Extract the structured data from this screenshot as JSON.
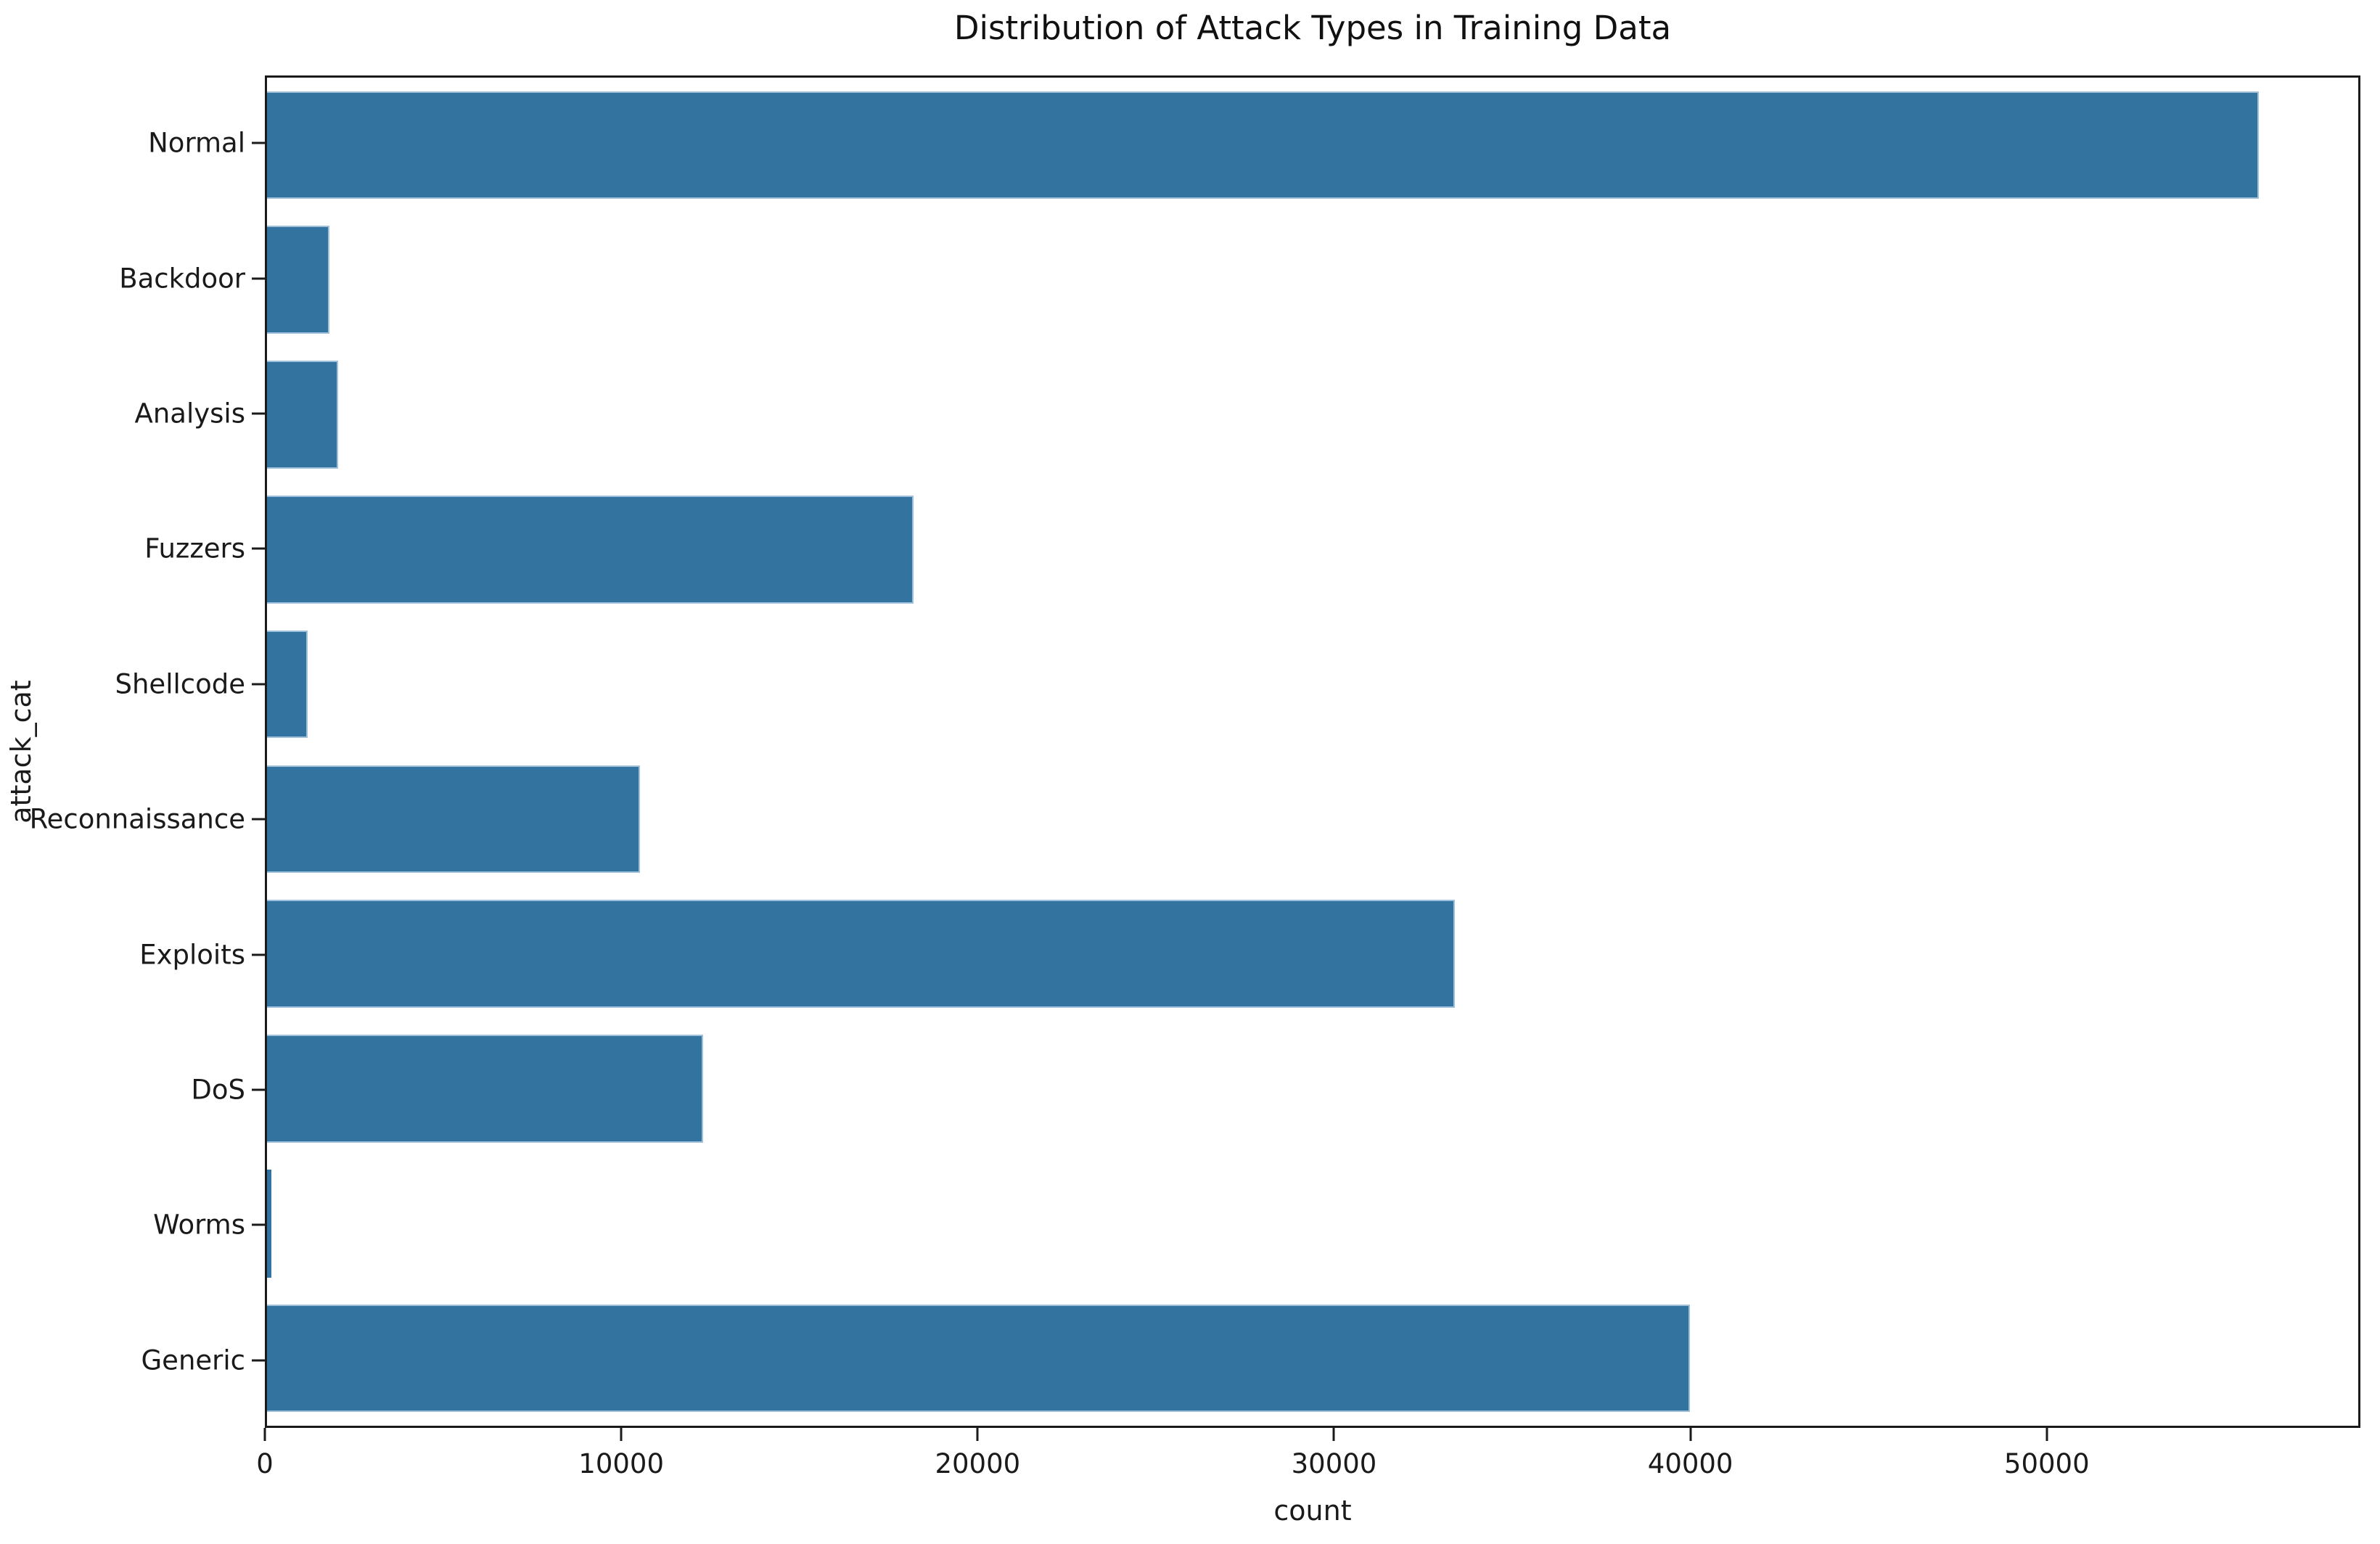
{
  "chart_data": {
    "type": "bar",
    "orientation": "horizontal",
    "title": "Distribution of Attack Types in Training Data",
    "xlabel": "count",
    "ylabel": "attack_cat",
    "categories": [
      "Normal",
      "Backdoor",
      "Analysis",
      "Fuzzers",
      "Shellcode",
      "Reconnaissance",
      "Exploits",
      "DoS",
      "Worms",
      "Generic"
    ],
    "values": [
      56000,
      1746,
      2000,
      18184,
      1133,
      10491,
      33393,
      12264,
      130,
      40000
    ],
    "xlim": [
      0,
      58800
    ],
    "xticks": [
      0,
      10000,
      20000,
      30000,
      40000,
      50000
    ],
    "bar_color": "#33739f",
    "bar_edge_color": "#9fc0da",
    "spine_color": "#1b1b1b",
    "grid": false,
    "legend": null
  }
}
